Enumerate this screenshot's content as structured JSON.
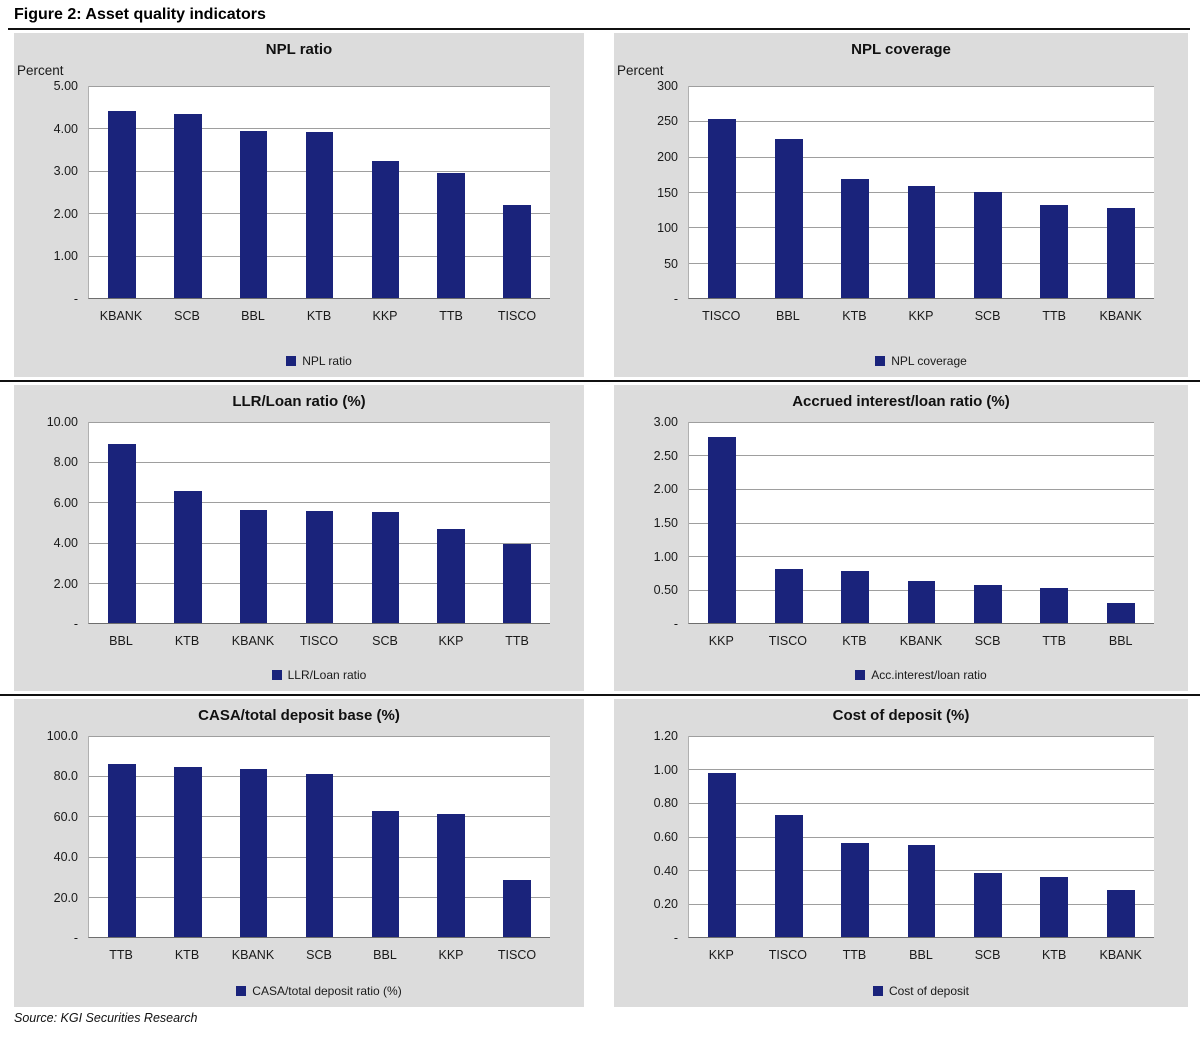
{
  "figure": {
    "title": "Figure 2: Asset quality indicators",
    "source": "Source: KGI Securities Research"
  },
  "colors": {
    "bar": "#1a237b",
    "panel_background": "#dcdcdc",
    "plot_background": "#ffffff",
    "gridline": "#9e9e9e"
  },
  "chart_data": [
    {
      "type": "bar",
      "title": "NPL ratio",
      "unit_label": "Percent",
      "categories": [
        "KBANK",
        "SCB",
        "BBL",
        "KTB",
        "KKP",
        "TTB",
        "TISCO"
      ],
      "values": [
        4.42,
        4.34,
        3.95,
        3.92,
        3.22,
        2.95,
        2.2
      ],
      "legend": "NPL ratio",
      "ylim": [
        0,
        5
      ],
      "yticks": [
        5,
        4,
        3,
        2,
        1,
        0
      ],
      "ytick_labels": [
        "5.00",
        "4.00",
        "3.00",
        "2.00",
        "1.00",
        "-"
      ],
      "grid": true,
      "legend_position": "bottom"
    },
    {
      "type": "bar",
      "title": "NPL coverage",
      "unit_label": "Percent",
      "categories": [
        "TISCO",
        "BBL",
        "KTB",
        "KKP",
        "SCB",
        "TTB",
        "KBANK"
      ],
      "values": [
        254,
        225,
        168,
        158,
        150,
        132,
        127
      ],
      "legend": "NPL coverage",
      "ylim": [
        0,
        300
      ],
      "yticks": [
        300,
        250,
        200,
        150,
        100,
        50,
        0
      ],
      "ytick_labels": [
        "300",
        "250",
        "200",
        "150",
        "100",
        "50",
        "-"
      ],
      "grid": true,
      "legend_position": "bottom"
    },
    {
      "type": "bar",
      "title": "LLR/Loan ratio (%)",
      "unit_label": "",
      "categories": [
        "BBL",
        "KTB",
        "KBANK",
        "TISCO",
        "SCB",
        "KKP",
        "TTB"
      ],
      "values": [
        8.9,
        6.55,
        5.6,
        5.55,
        5.5,
        4.7,
        3.95
      ],
      "legend": "LLR/Loan ratio",
      "ylim": [
        0,
        10
      ],
      "yticks": [
        10,
        8,
        6,
        4,
        2,
        0
      ],
      "ytick_labels": [
        "10.00",
        "8.00",
        "6.00",
        "4.00",
        "2.00",
        "-"
      ],
      "grid": true,
      "legend_position": "bottom"
    },
    {
      "type": "bar",
      "title": "Accrued interest/loan ratio (%)",
      "unit_label": "",
      "categories": [
        "KKP",
        "TISCO",
        "KTB",
        "KBANK",
        "SCB",
        "TTB",
        "BBL"
      ],
      "values": [
        2.78,
        0.8,
        0.77,
        0.63,
        0.57,
        0.52,
        0.3
      ],
      "legend": "Acc.interest/loan ratio",
      "ylim": [
        0,
        3
      ],
      "yticks": [
        3,
        2.5,
        2,
        1.5,
        1,
        0.5,
        0
      ],
      "ytick_labels": [
        "3.00",
        "2.50",
        "2.00",
        "1.50",
        "1.00",
        "0.50",
        "-"
      ],
      "grid": true,
      "legend_position": "bottom"
    },
    {
      "type": "bar",
      "title": "CASA/total deposit base (%)",
      "unit_label": "",
      "categories": [
        "TTB",
        "KTB",
        "KBANK",
        "SCB",
        "BBL",
        "KKP",
        "TISCO"
      ],
      "values": [
        86.0,
        84.5,
        83.5,
        81.0,
        62.5,
        61.0,
        28.5
      ],
      "legend": "CASA/total deposit ratio (%)",
      "ylim": [
        0,
        100
      ],
      "yticks": [
        100,
        80,
        60,
        40,
        20,
        0
      ],
      "ytick_labels": [
        "100.0",
        "80.0",
        "60.0",
        "40.0",
        "20.0",
        "-"
      ],
      "grid": true,
      "legend_position": "bottom"
    },
    {
      "type": "bar",
      "title": "Cost of deposit (%)",
      "unit_label": "",
      "categories": [
        "KKP",
        "TISCO",
        "TTB",
        "BBL",
        "SCB",
        "KTB",
        "KBANK"
      ],
      "values": [
        0.98,
        0.73,
        0.56,
        0.55,
        0.38,
        0.36,
        0.28
      ],
      "legend": "Cost of deposit",
      "ylim": [
        0,
        1.2
      ],
      "yticks": [
        1.2,
        1.0,
        0.8,
        0.6,
        0.4,
        0.2,
        0
      ],
      "ytick_labels": [
        "1.20",
        "1.00",
        "0.80",
        "0.60",
        "0.40",
        "0.20",
        "-"
      ],
      "grid": true,
      "legend_position": "bottom"
    }
  ]
}
